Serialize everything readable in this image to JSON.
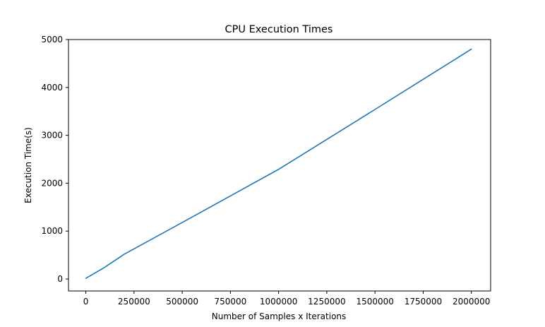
{
  "chart_data": {
    "type": "line",
    "title": "CPU Execution Times",
    "xlabel": "Number of Samples x Iterations",
    "ylabel": "Execution Time(s)",
    "xlim": [
      -90000,
      2100000
    ],
    "ylim": [
      -250,
      5000
    ],
    "xticks": [
      0,
      250000,
      500000,
      750000,
      1000000,
      1250000,
      1500000,
      1750000,
      2000000
    ],
    "yticks": [
      0,
      1000,
      2000,
      3000,
      4000,
      5000
    ],
    "grid": false,
    "series": [
      {
        "color": "#1f77b4",
        "x": [
          0,
          50000,
          100000,
          200000,
          500000,
          1000000,
          1500000,
          2000000
        ],
        "y": [
          15,
          130,
          250,
          520,
          1180,
          2290,
          3540,
          4800
        ]
      }
    ]
  }
}
